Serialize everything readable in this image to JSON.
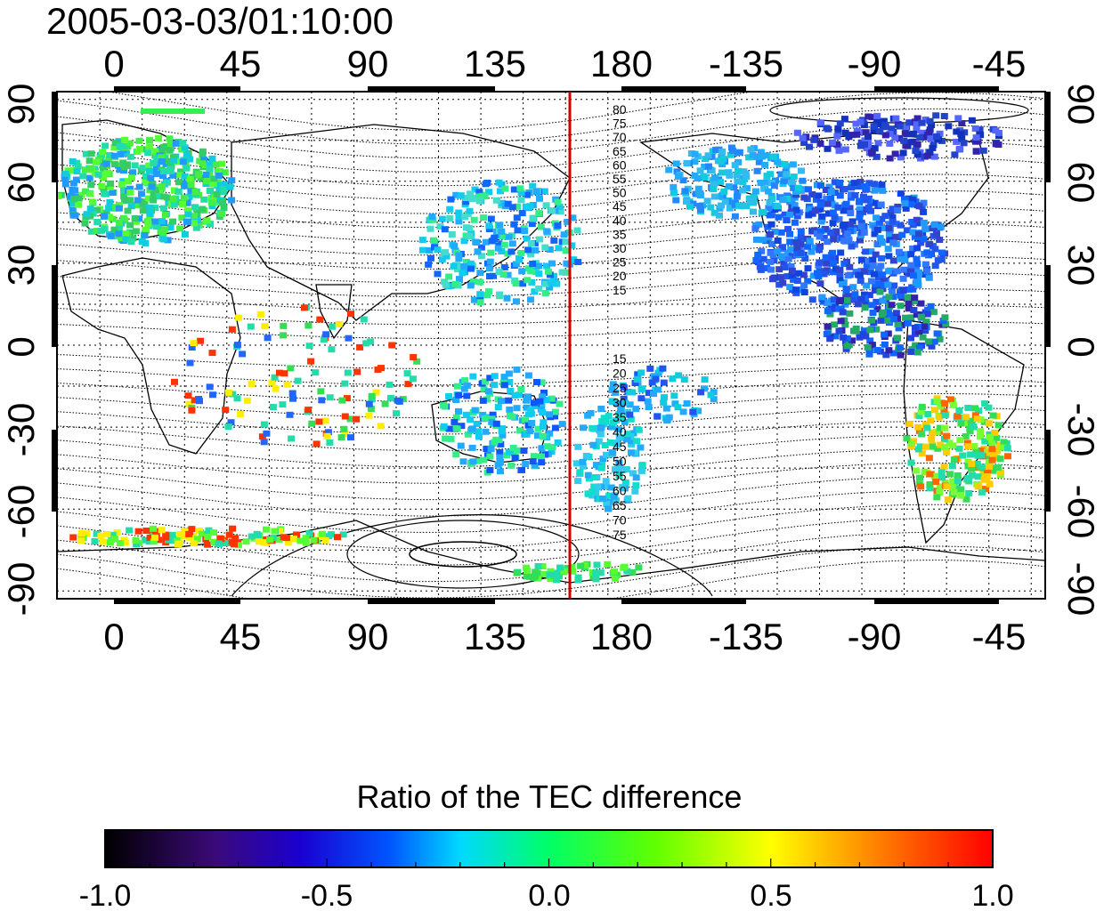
{
  "title": "2005-03-03/01:10:00",
  "map": {
    "top_x_ticks": [
      "0",
      "45",
      "90",
      "135",
      "180",
      "-135",
      "-90",
      "-45"
    ],
    "bottom_x_ticks": [
      "0",
      "45",
      "90",
      "135",
      "180",
      "-135",
      "-90",
      "-45"
    ],
    "left_y_ticks": [
      "90",
      "60",
      "30",
      "0",
      "-30",
      "-60",
      "-90"
    ],
    "right_y_ticks": [
      "90",
      "60",
      "30",
      "0",
      "-30",
      "-60",
      "-90"
    ],
    "contour_labels_north": [
      "80",
      "75",
      "70",
      "65",
      "60",
      "55",
      "50",
      "45",
      "40",
      "35",
      "30",
      "25",
      "20",
      "15"
    ],
    "contour_labels_south": [
      "15",
      "20",
      "25",
      "30",
      "35",
      "40",
      "45",
      "50",
      "55",
      "60",
      "65",
      "70",
      "75"
    ],
    "meridian_marker_color": "#cc0000"
  },
  "colorbar": {
    "title": "Ratio of the TEC difference",
    "ticks": [
      "-1.0",
      "-0.5",
      "0.0",
      "0.5",
      "1.0"
    ],
    "colormap_stops": [
      "#000000",
      "#3a0a7a",
      "#0000ff",
      "#00e5ff",
      "#00ff00",
      "#ffff00",
      "#ff8000",
      "#ff0000"
    ]
  }
}
